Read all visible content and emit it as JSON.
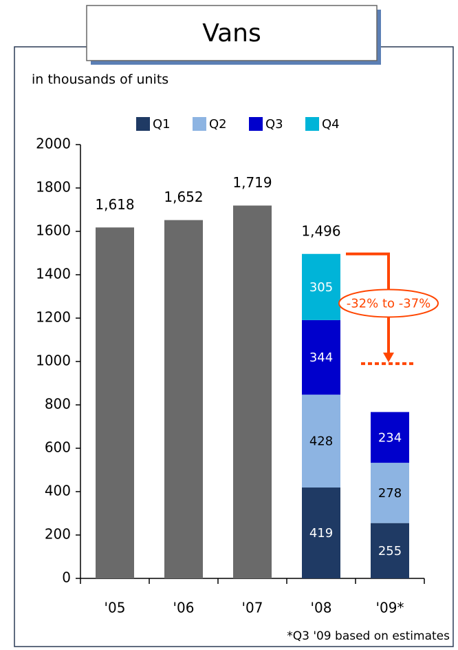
{
  "chart_data": {
    "type": "bar",
    "title": "Vans",
    "subtitle": "in thousands of units",
    "footnote": "*Q3 '09 based on estimates",
    "categories": [
      "'05",
      "'06",
      "'07",
      "'08",
      "'09*"
    ],
    "totals": {
      "color": "#6a6a6a",
      "values": [
        1618,
        1652,
        1719,
        1496,
        null
      ],
      "value_labels": [
        "1,618",
        "1,652",
        "1,719",
        "1,496",
        null
      ]
    },
    "series": [
      {
        "name": "Q1",
        "color": "#1f3a64",
        "values": [
          null,
          null,
          null,
          419,
          255
        ]
      },
      {
        "name": "Q2",
        "color": "#8db4e2",
        "values": [
          null,
          null,
          null,
          428,
          278
        ]
      },
      {
        "name": "Q3",
        "color": "#0000cc",
        "values": [
          null,
          null,
          null,
          344,
          234
        ]
      },
      {
        "name": "Q4",
        "color": "#00b4d8",
        "values": [
          null,
          null,
          null,
          305,
          null
        ]
      }
    ],
    "annotation": {
      "text": "-32% to -37%",
      "target": 990,
      "color": "#ff4500"
    },
    "ylim": [
      0,
      2000
    ],
    "yticks": [
      0,
      200,
      400,
      600,
      800,
      1000,
      1200,
      1400,
      1600,
      1800,
      2000
    ],
    "grid": false
  }
}
